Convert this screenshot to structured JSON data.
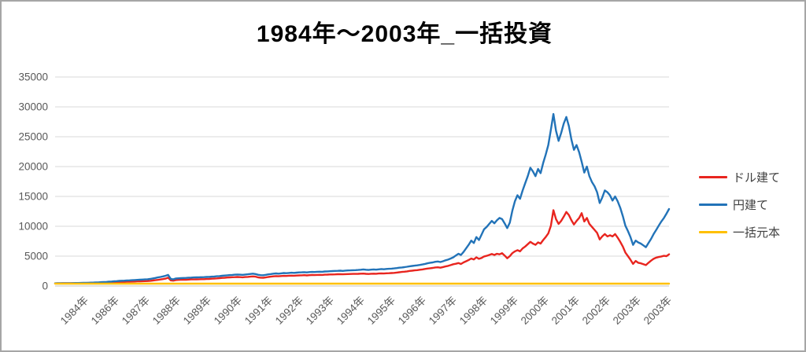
{
  "title": "1984年～2003年_一括投資",
  "frame": {
    "border_color": "#A6A6A6",
    "background": "#FFFFFF"
  },
  "axis_style": {
    "grid_color": "#D9D9D9",
    "zero_line_color": "#C6C6C6",
    "tick_text_color": "#595959"
  },
  "legend": {
    "position": "right"
  },
  "chart_data": {
    "type": "line",
    "title": "1984年～2003年_一括投資",
    "xlabel": "",
    "ylabel": "",
    "ylim": [
      0,
      35000
    ],
    "grid": true,
    "legend_position": "right",
    "points": 240,
    "y_tick_labels": [
      "0",
      "5000",
      "10000",
      "15000",
      "20000",
      "25000",
      "30000",
      "35000"
    ],
    "y_ticks": [
      0,
      5000,
      10000,
      15000,
      20000,
      25000,
      30000,
      35000
    ],
    "x_tick_labels": [
      "1984年",
      "1986年",
      "1987年",
      "1988年",
      "1989年",
      "1990年",
      "1991年",
      "1992年",
      "1993年",
      "1994年",
      "1995年",
      "1996年",
      "1997年",
      "1998年",
      "1999年",
      "2000年",
      "2001年",
      "2002年",
      "2003年",
      "2003年"
    ],
    "series": [
      {
        "name": "ドル建て",
        "color": "#E8251F",
        "values": [
          440,
          450,
          445,
          455,
          460,
          465,
          460,
          470,
          480,
          485,
          490,
          500,
          505,
          515,
          525,
          540,
          550,
          560,
          575,
          590,
          600,
          610,
          620,
          630,
          645,
          660,
          680,
          690,
          710,
          720,
          740,
          750,
          770,
          780,
          800,
          810,
          830,
          870,
          920,
          970,
          1030,
          1090,
          1160,
          1240,
          1400,
          950,
          900,
          1000,
          1020,
          1040,
          1060,
          1050,
          1080,
          1100,
          1110,
          1120,
          1130,
          1140,
          1150,
          1170,
          1190,
          1220,
          1250,
          1280,
          1310,
          1350,
          1380,
          1420,
          1450,
          1470,
          1490,
          1510,
          1490,
          1460,
          1500,
          1530,
          1570,
          1610,
          1560,
          1450,
          1400,
          1380,
          1440,
          1510,
          1560,
          1620,
          1660,
          1630,
          1670,
          1700,
          1690,
          1720,
          1740,
          1730,
          1750,
          1780,
          1790,
          1810,
          1780,
          1820,
          1840,
          1830,
          1860,
          1870,
          1850,
          1890,
          1910,
          1930,
          1940,
          1950,
          1970,
          1980,
          1960,
          1990,
          2000,
          2010,
          2020,
          2030,
          2040,
          2060,
          2080,
          2040,
          2010,
          2050,
          2070,
          2050,
          2090,
          2120,
          2090,
          2130,
          2150,
          2170,
          2200,
          2250,
          2300,
          2350,
          2400,
          2450,
          2520,
          2570,
          2620,
          2660,
          2720,
          2780,
          2850,
          2920,
          2980,
          3020,
          3100,
          3130,
          3060,
          3170,
          3280,
          3370,
          3500,
          3650,
          3720,
          3840,
          3680,
          3950,
          4150,
          4350,
          4600,
          4450,
          4800,
          4550,
          4700,
          4950,
          5050,
          5200,
          5350,
          5200,
          5400,
          5300,
          5500,
          5100,
          4650,
          5000,
          5500,
          5800,
          6000,
          5800,
          6300,
          6600,
          7000,
          7400,
          7100,
          6900,
          7300,
          7100,
          7700,
          8200,
          8800,
          10100,
          12700,
          11200,
          10400,
          10900,
          11600,
          12400,
          11900,
          11000,
          10300,
          10900,
          11400,
          12200,
          10800,
          11400,
          10400,
          9900,
          9400,
          8900,
          7800,
          8300,
          8700,
          8300,
          8500,
          8300,
          8700,
          8100,
          7400,
          6600,
          5600,
          5000,
          4400,
          3700,
          4200,
          3900,
          3800,
          3650,
          3500,
          3900,
          4250,
          4550,
          4750,
          4850,
          4950,
          5050,
          5000,
          5300
        ]
      },
      {
        "name": "円建て",
        "color": "#2273B8",
        "values": [
          450,
          460,
          455,
          465,
          470,
          480,
          475,
          485,
          495,
          500,
          510,
          520,
          530,
          545,
          560,
          580,
          600,
          620,
          640,
          665,
          690,
          720,
          750,
          790,
          820,
          850,
          880,
          900,
          930,
          950,
          980,
          1000,
          1030,
          1050,
          1080,
          1100,
          1130,
          1190,
          1260,
          1340,
          1430,
          1510,
          1610,
          1710,
          1850,
          1200,
          1120,
          1260,
          1290,
          1310,
          1340,
          1360,
          1390,
          1410,
          1430,
          1450,
          1460,
          1470,
          1490,
          1510,
          1530,
          1560,
          1590,
          1630,
          1660,
          1710,
          1750,
          1790,
          1830,
          1860,
          1890,
          1920,
          1900,
          1870,
          1920,
          1960,
          2010,
          2060,
          2000,
          1880,
          1820,
          1800,
          1870,
          1950,
          2000,
          2060,
          2110,
          2070,
          2120,
          2170,
          2150,
          2190,
          2220,
          2200,
          2240,
          2270,
          2290,
          2310,
          2280,
          2330,
          2360,
          2340,
          2380,
          2400,
          2380,
          2430,
          2450,
          2480,
          2500,
          2520,
          2540,
          2560,
          2530,
          2580,
          2600,
          2620,
          2640,
          2660,
          2680,
          2720,
          2780,
          2730,
          2690,
          2740,
          2770,
          2740,
          2790,
          2840,
          2800,
          2850,
          2880,
          2910,
          2950,
          3000,
          3060,
          3110,
          3160,
          3220,
          3300,
          3360,
          3410,
          3460,
          3520,
          3600,
          3700,
          3800,
          3890,
          3950,
          4050,
          4100,
          4010,
          4150,
          4300,
          4420,
          4600,
          4800,
          5100,
          5400,
          5200,
          5700,
          6300,
          6900,
          7600,
          7200,
          8200,
          7700,
          8600,
          9500,
          9900,
          10400,
          10900,
          10500,
          11000,
          11400,
          11200,
          10500,
          9700,
          10600,
          12600,
          14200,
          15200,
          14600,
          16000,
          17200,
          18400,
          19800,
          19200,
          18400,
          19600,
          18900,
          20600,
          22000,
          23600,
          26200,
          28800,
          26000,
          24300,
          25600,
          27200,
          28300,
          26800,
          24500,
          22800,
          23600,
          22400,
          20800,
          19000,
          20000,
          18400,
          17400,
          16700,
          15700,
          13900,
          14800,
          16000,
          15700,
          15200,
          14300,
          15000,
          14200,
          13100,
          11700,
          10100,
          9200,
          8200,
          6900,
          7600,
          7300,
          7100,
          6800,
          6500,
          7200,
          7900,
          8700,
          9400,
          10100,
          10800,
          11400,
          12100,
          12900
        ]
      },
      {
        "name": "一括元本",
        "color": "#FFC000",
        "constant_value": 400
      }
    ]
  }
}
